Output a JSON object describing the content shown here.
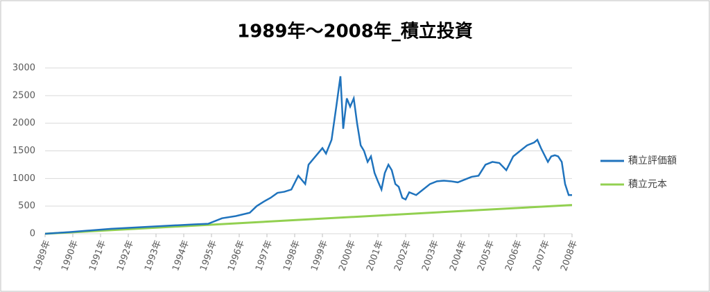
{
  "chart_data": {
    "type": "line",
    "title": "1989年～2008年_積立投資",
    "xlim": [
      1989,
      2008
    ],
    "xticks": [
      {
        "value": 1989,
        "label": "1989年"
      },
      {
        "value": 1990,
        "label": "1990年"
      },
      {
        "value": 1991,
        "label": "1991年"
      },
      {
        "value": 1992,
        "label": "1992年"
      },
      {
        "value": 1993,
        "label": "1993年"
      },
      {
        "value": 1994,
        "label": "1994年"
      },
      {
        "value": 1995,
        "label": "1995年"
      },
      {
        "value": 1996,
        "label": "1996年"
      },
      {
        "value": 1997,
        "label": "1997年"
      },
      {
        "value": 1998,
        "label": "1998年"
      },
      {
        "value": 1999,
        "label": "1999年"
      },
      {
        "value": 2000,
        "label": "2000年"
      },
      {
        "value": 2001,
        "label": "2001年"
      },
      {
        "value": 2002,
        "label": "2002年"
      },
      {
        "value": 2003,
        "label": "2003年"
      },
      {
        "value": 2004,
        "label": "2004年"
      },
      {
        "value": 2005,
        "label": "2005年"
      },
      {
        "value": 2006,
        "label": "2006年"
      },
      {
        "value": 2007,
        "label": "2007年"
      },
      {
        "value": 2008,
        "label": "2008年"
      }
    ],
    "ylim": [
      0,
      3000
    ],
    "yticks": [
      0,
      500,
      1000,
      1500,
      2000,
      2500,
      3000
    ],
    "grid": true,
    "legend": "right",
    "series": [
      {
        "name": "積立評価額",
        "color": "#1f73bd",
        "x": [
          1989,
          1989.88,
          1990.63,
          1991.38,
          1992.13,
          1992.88,
          1993.63,
          1994.38,
          1994.88,
          1995.38,
          1995.88,
          1996.38,
          1996.63,
          1996.88,
          1997.13,
          1997.38,
          1997.63,
          1997.88,
          1998.13,
          1998.38,
          1998.5,
          1998.75,
          1999,
          1999.13,
          1999.33,
          1999.5,
          1999.65,
          1999.75,
          1999.88,
          2000,
          2000.13,
          2000.25,
          2000.38,
          2000.5,
          2000.63,
          2000.75,
          2000.88,
          2001,
          2001.13,
          2001.25,
          2001.38,
          2001.5,
          2001.63,
          2001.75,
          2001.88,
          2002,
          2002.13,
          2002.38,
          2002.63,
          2002.88,
          2003.13,
          2003.38,
          2003.63,
          2003.88,
          2004.13,
          2004.38,
          2004.63,
          2004.88,
          2005.13,
          2005.38,
          2005.63,
          2005.88,
          2006.13,
          2006.38,
          2006.63,
          2006.75,
          2006.88,
          2007.13,
          2007.25,
          2007.38,
          2007.5,
          2007.63,
          2007.75,
          2007.88,
          2008
        ],
        "values": [
          0,
          30,
          60,
          90,
          110,
          130,
          150,
          170,
          180,
          280,
          320,
          380,
          500,
          580,
          650,
          740,
          760,
          800,
          1050,
          900,
          1250,
          1400,
          1550,
          1450,
          1700,
          2300,
          2850,
          1900,
          2450,
          2300,
          2450,
          2000,
          1600,
          1500,
          1300,
          1400,
          1100,
          950,
          800,
          1100,
          1250,
          1150,
          900,
          850,
          650,
          620,
          750,
          700,
          800,
          900,
          950,
          960,
          950,
          930,
          980,
          1030,
          1050,
          1250,
          1300,
          1280,
          1150,
          1400,
          1500,
          1600,
          1650,
          1700,
          1550,
          1300,
          1400,
          1420,
          1400,
          1300,
          900,
          700,
          700
        ]
      },
      {
        "name": "積立元本",
        "color": "#92d050",
        "x": [
          1989,
          2008
        ],
        "values": [
          0,
          520
        ]
      }
    ]
  }
}
